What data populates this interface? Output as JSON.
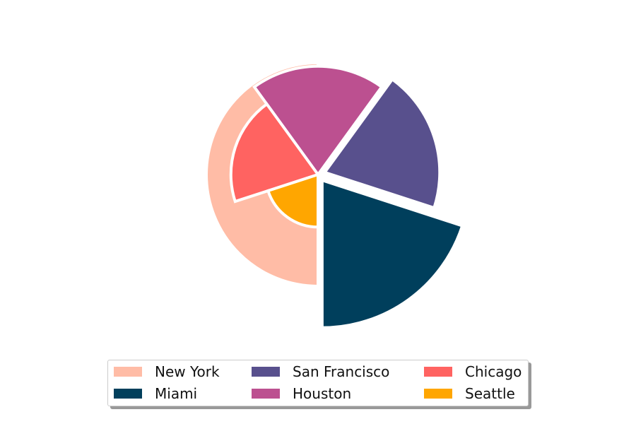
{
  "chart_data": {
    "type": "pie",
    "variant": "polar-area",
    "legend_position": "bottom",
    "legend_columns": 3,
    "series": [
      {
        "name": "New York",
        "angle_deg": 180,
        "radius": 1.0,
        "exploded": false,
        "color": "#FFBCA6"
      },
      {
        "name": "Miami",
        "angle_deg": 72,
        "radius": 1.32,
        "exploded": true,
        "color": "#003F5C"
      },
      {
        "name": "San Francisco",
        "angle_deg": 72,
        "radius": 1.03,
        "exploded": true,
        "color": "#58508D"
      },
      {
        "name": "Houston",
        "angle_deg": 72,
        "radius": 0.97,
        "exploded": false,
        "color": "#BC5090"
      },
      {
        "name": "Chicago",
        "angle_deg": 72,
        "radius": 0.78,
        "exploded": false,
        "color": "#FF6361"
      },
      {
        "name": "Seattle",
        "angle_deg": 72,
        "radius": 0.47,
        "exploded": false,
        "color": "#FFA600"
      }
    ]
  },
  "legend": {
    "items": [
      {
        "label": "New York",
        "color": "#FFBCA6"
      },
      {
        "label": "San Francisco",
        "color": "#58508D"
      },
      {
        "label": "Chicago",
        "color": "#FF6361"
      },
      {
        "label": "Miami",
        "color": "#003F5C"
      },
      {
        "label": "Houston",
        "color": "#BC5090"
      },
      {
        "label": "Seattle",
        "color": "#FFA600"
      }
    ]
  }
}
